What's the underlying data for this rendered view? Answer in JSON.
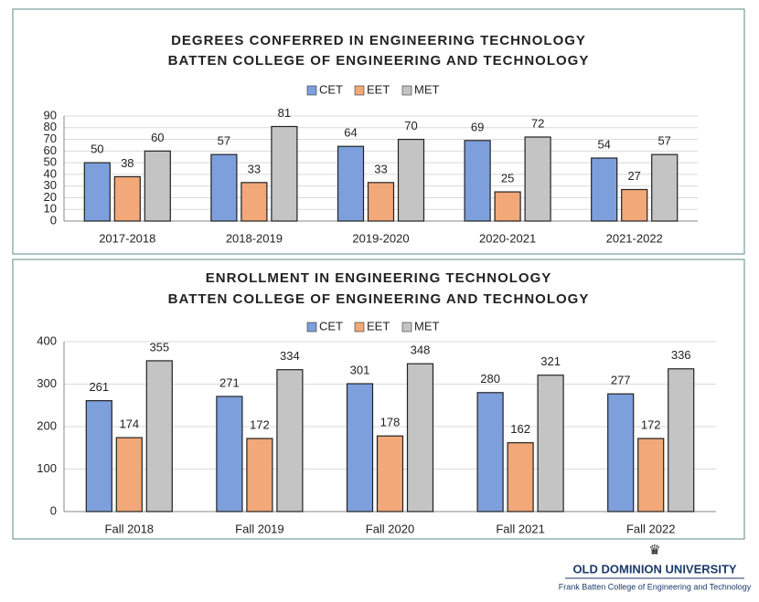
{
  "chart_data": [
    {
      "type": "bar",
      "title": "DEGREES CONFERRED IN ENGINEERING TECHNOLOGY",
      "subtitle": "BATTEN COLLEGE OF ENGINEERING AND TECHNOLOGY",
      "categories": [
        "2017-2018",
        "2018-2019",
        "2019-2020",
        "2020-2021",
        "2021-2022"
      ],
      "series": [
        {
          "name": "CET",
          "color": "#7d9fdc",
          "values": [
            50,
            57,
            64,
            69,
            54
          ]
        },
        {
          "name": "EET",
          "color": "#f2a878",
          "values": [
            38,
            33,
            33,
            25,
            27
          ]
        },
        {
          "name": "MET",
          "color": "#c4c4c4",
          "values": [
            60,
            81,
            70,
            72,
            57
          ]
        }
      ],
      "ylim": [
        0,
        90
      ],
      "yticks": [
        0,
        10,
        20,
        30,
        40,
        50,
        60,
        70,
        80,
        90
      ],
      "grid": true,
      "legend": "top"
    },
    {
      "type": "bar",
      "title": "ENROLLMENT IN ENGINEERING TECHNOLOGY",
      "subtitle": "BATTEN COLLEGE OF ENGINEERING AND TECHNOLOGY",
      "categories": [
        "Fall 2018",
        "Fall 2019",
        "Fall 2020",
        "Fall 2021",
        "Fall 2022"
      ],
      "series": [
        {
          "name": "CET",
          "color": "#7d9fdc",
          "values": [
            261,
            271,
            301,
            280,
            277
          ]
        },
        {
          "name": "EET",
          "color": "#f2a878",
          "values": [
            174,
            172,
            178,
            162,
            172
          ]
        },
        {
          "name": "MET",
          "color": "#c4c4c4",
          "values": [
            355,
            334,
            348,
            321,
            336
          ]
        }
      ],
      "ylim": [
        0,
        400
      ],
      "yticks": [
        0,
        100,
        200,
        300,
        400
      ],
      "grid": true,
      "legend": "top"
    }
  ],
  "logo": {
    "name": "OLD DOMINION UNIVERSITY",
    "subtitle": "Frank Batten College of Engineering and Technology"
  }
}
